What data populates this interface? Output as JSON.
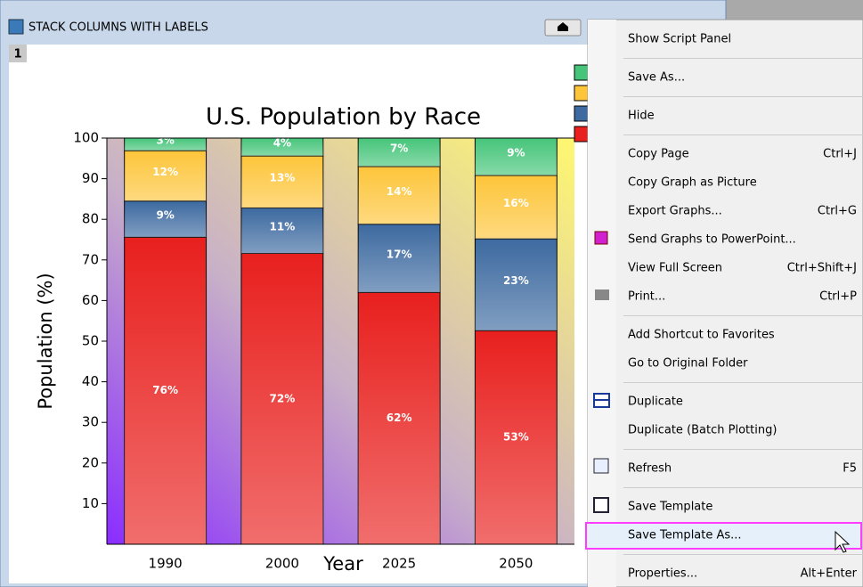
{
  "window": {
    "title": "STACK COLUMNS WITH LABELS",
    "layer": "1"
  },
  "chart_data": {
    "type": "stacked-bar",
    "title": "U.S. Population by Race",
    "x_label": "Year",
    "y_label": "Population (%)",
    "categories": [
      "1990",
      "2000",
      "2025",
      "2050"
    ],
    "series": [
      {
        "color": "#e8201e",
        "values": [
          75.6,
          71.6,
          62,
          52.6
        ],
        "value_labels": [
          "76%",
          "72%",
          "62%",
          "53%"
        ]
      },
      {
        "color": "#3d6aa0",
        "values": [
          8.9,
          11.2,
          16.8,
          22.6
        ],
        "value_labels": [
          "9%",
          "11%",
          "17%",
          "23%"
        ]
      },
      {
        "color": "#fdc53a",
        "values": [
          12.4,
          12.8,
          14.2,
          15.6
        ],
        "value_labels": [
          "12%",
          "13%",
          "14%",
          "16%"
        ]
      },
      {
        "color": "#46c57a",
        "values": [
          3.1,
          4.4,
          7,
          9.2
        ],
        "value_labels": [
          "3%",
          "4%",
          "7%",
          "9%"
        ]
      }
    ],
    "ylim": [
      0,
      100
    ],
    "yticks": [
      10,
      20,
      30,
      40,
      50,
      60,
      70,
      80,
      90,
      100
    ]
  },
  "menu": {
    "groups": [
      [
        {
          "label": "Show Script Panel"
        }
      ],
      [
        {
          "label": "Save As..."
        }
      ],
      [
        {
          "label": "Hide"
        }
      ],
      [
        {
          "label": "Copy Page",
          "shortcut": "Ctrl+J"
        },
        {
          "label": "Copy Graph as Picture"
        },
        {
          "label": "Export Graphs...",
          "shortcut": "Ctrl+G"
        },
        {
          "label": "Send Graphs to PowerPoint..."
        },
        {
          "label": "View Full Screen",
          "shortcut": "Ctrl+Shift+J"
        },
        {
          "label": "Print...",
          "shortcut": "Ctrl+P"
        }
      ],
      [
        {
          "label": "Add Shortcut to Favorites"
        },
        {
          "label": "Go to Original Folder",
          "disabled": true
        }
      ],
      [
        {
          "label": "Duplicate"
        },
        {
          "label": "Duplicate (Batch Plotting)"
        }
      ],
      [
        {
          "label": "Refresh",
          "shortcut": "F5"
        }
      ],
      [
        {
          "label": "Save Template"
        },
        {
          "label": "Save Template As...",
          "highlighted": true
        }
      ],
      [
        {
          "label": "Properties...",
          "shortcut": "Alt+Enter"
        }
      ]
    ]
  }
}
